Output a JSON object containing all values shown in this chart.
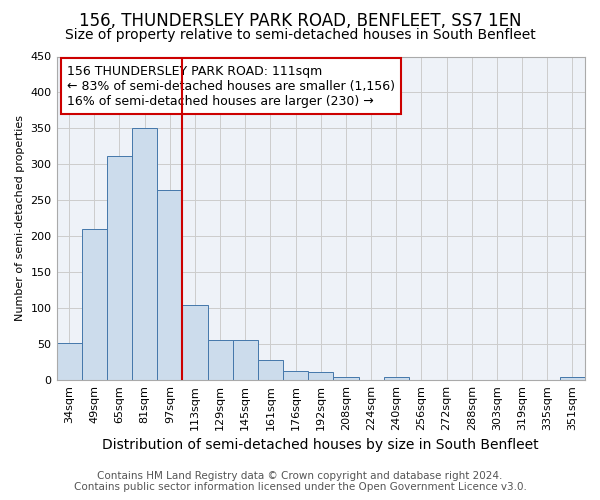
{
  "title": "156, THUNDERSLEY PARK ROAD, BENFLEET, SS7 1EN",
  "subtitle": "Size of property relative to semi-detached houses in South Benfleet",
  "xlabel": "Distribution of semi-detached houses by size in South Benfleet",
  "ylabel": "Number of semi-detached properties",
  "bar_labels": [
    "34sqm",
    "49sqm",
    "65sqm",
    "81sqm",
    "97sqm",
    "113sqm",
    "129sqm",
    "145sqm",
    "161sqm",
    "176sqm",
    "192sqm",
    "208sqm",
    "224sqm",
    "240sqm",
    "256sqm",
    "272sqm",
    "288sqm",
    "303sqm",
    "319sqm",
    "335sqm",
    "351sqm"
  ],
  "bar_values": [
    51,
    210,
    312,
    350,
    265,
    104,
    56,
    56,
    28,
    13,
    11,
    5,
    0,
    5,
    0,
    0,
    0,
    0,
    0,
    0,
    4
  ],
  "bar_color": "#ccdcec",
  "bar_edge_color": "#4477aa",
  "annotation_title": "156 THUNDERSLEY PARK ROAD: 111sqm",
  "annotation_line1": "← 83% of semi-detached houses are smaller (1,156)",
  "annotation_line2": "16% of semi-detached houses are larger (230) →",
  "annotation_box_color": "#ffffff",
  "annotation_box_edge_color": "#cc0000",
  "vline_color": "#cc0000",
  "vline_bar_index": 5,
  "ylim": [
    0,
    450
  ],
  "yticks": [
    0,
    50,
    100,
    150,
    200,
    250,
    300,
    350,
    400,
    450
  ],
  "grid_color": "#cccccc",
  "background_color": "#eef2f8",
  "footer_line1": "Contains HM Land Registry data © Crown copyright and database right 2024.",
  "footer_line2": "Contains public sector information licensed under the Open Government Licence v3.0.",
  "title_fontsize": 12,
  "subtitle_fontsize": 10,
  "xlabel_fontsize": 10,
  "ylabel_fontsize": 8,
  "tick_fontsize": 8,
  "annotation_fontsize": 9,
  "footer_fontsize": 7.5
}
